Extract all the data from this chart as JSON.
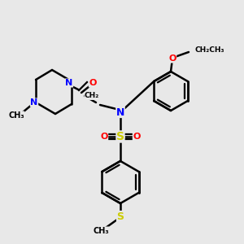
{
  "bg_color": "#e8e8e8",
  "N_color": "#0000ff",
  "O_color": "#ff0000",
  "S_color": "#cccc00",
  "C_color": "#000000",
  "bond_color": "#000000",
  "bond_width": 1.8,
  "figsize": [
    3.0,
    3.0
  ],
  "dpi": 100,
  "xlim": [
    0,
    300
  ],
  "ylim": [
    0,
    300
  ]
}
